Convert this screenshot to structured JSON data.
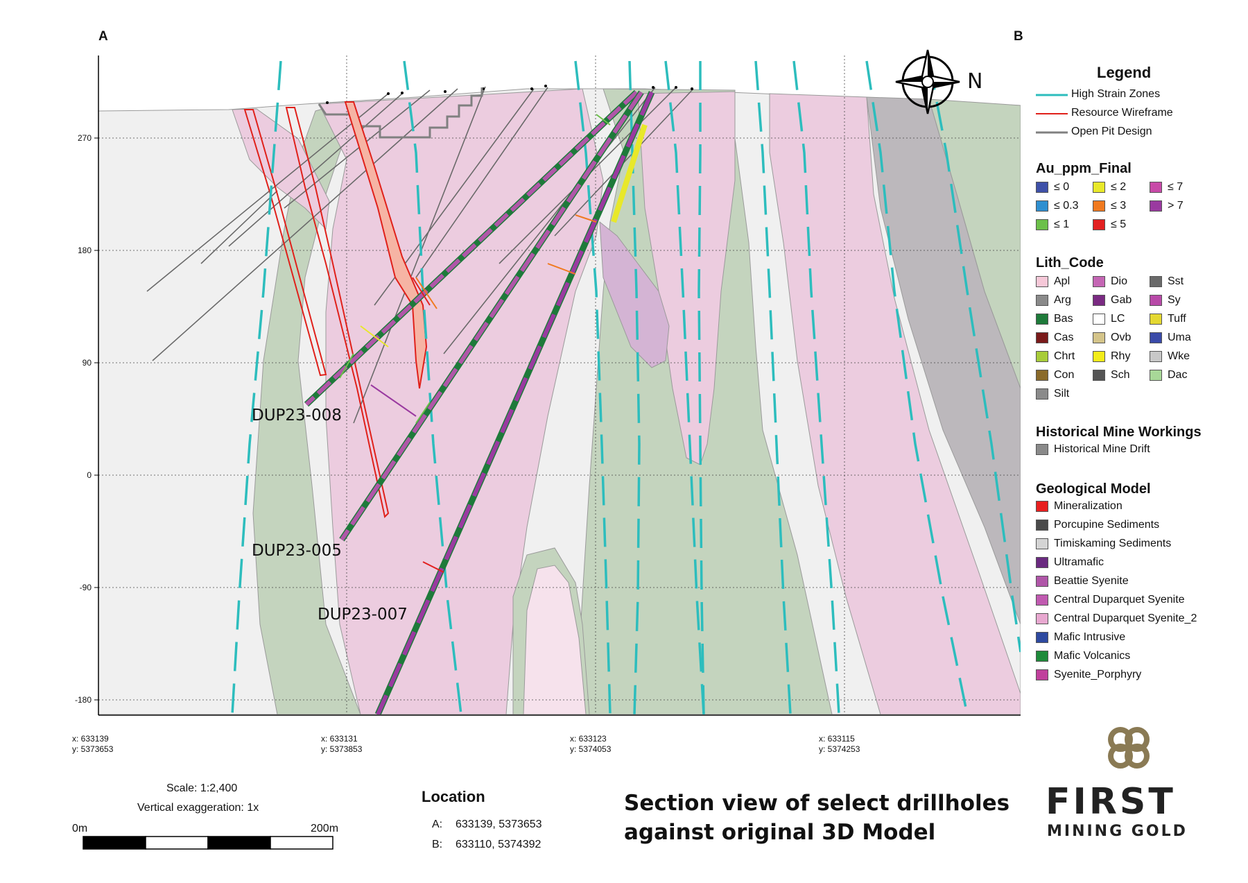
{
  "corner_labels": {
    "a": "A",
    "b": "B"
  },
  "y_axis": [
    "270",
    "180",
    "90",
    "0",
    "-90",
    "-180"
  ],
  "x_axis": [
    {
      "x": "x: 633139",
      "y": "y: 5373653"
    },
    {
      "x": "x: 633131",
      "y": "y: 5373853"
    },
    {
      "x": "x: 633123",
      "y": "y: 5374053"
    },
    {
      "x": "x: 633115",
      "y": "y: 5374253"
    }
  ],
  "holes": [
    "DUP23-008",
    "DUP23-005",
    "DUP23-007"
  ],
  "compass_label": "N",
  "legend": {
    "title": "Legend",
    "lines": [
      {
        "label": "High Strain Zones",
        "color": "#2dbdbd"
      },
      {
        "label": "Resource Wireframe",
        "color": "#e0201a"
      },
      {
        "label": "Open Pit Design",
        "color": "#808080"
      }
    ],
    "au_title": "Au_ppm_Final",
    "au": [
      {
        "label": "≤ 0",
        "color": "#3f51a8"
      },
      {
        "label": "≤ 2",
        "color": "#e8e82a"
      },
      {
        "label": "≤ 7",
        "color": "#c84aa8"
      },
      {
        "label": "≤ 0.3",
        "color": "#2f8fd0"
      },
      {
        "label": "≤ 3",
        "color": "#f07a20"
      },
      {
        "label": "> 7",
        "color": "#9a3aa0"
      },
      {
        "label": "≤ 1",
        "color": "#6cc04a"
      },
      {
        "label": "≤ 5",
        "color": "#e22020"
      }
    ],
    "lith_title": "Lith_Code",
    "lith": [
      {
        "label": "Apl",
        "color": "#f6c8d8"
      },
      {
        "label": "Dio",
        "color": "#c466b4"
      },
      {
        "label": "Sst",
        "color": "#6a6a6a"
      },
      {
        "label": "Arg",
        "color": "#8a8a8a"
      },
      {
        "label": "Gab",
        "color": "#7a2a82"
      },
      {
        "label": "Sy",
        "color": "#b84aa8"
      },
      {
        "label": "Bas",
        "color": "#1e7a3a"
      },
      {
        "label": "LC",
        "color": "#ffffff"
      },
      {
        "label": "Tuff",
        "color": "#e4d832"
      },
      {
        "label": "Cas",
        "color": "#7a1a1a"
      },
      {
        "label": "Ovb",
        "color": "#d4c48a"
      },
      {
        "label": "Uma",
        "color": "#3a4aa8"
      },
      {
        "label": "Chrt",
        "color": "#a8cc3a"
      },
      {
        "label": "Rhy",
        "color": "#f2ec1a"
      },
      {
        "label": "Wke",
        "color": "#c8c8c8"
      },
      {
        "label": "Con",
        "color": "#8a6a2a"
      },
      {
        "label": "Sch",
        "color": "#545454"
      },
      {
        "label": "Dac",
        "color": "#a8d898"
      },
      {
        "label": "Silt",
        "color": "#8a8a8a"
      }
    ],
    "hist_title": "Historical Mine Workings",
    "hist": [
      {
        "label": "Historical Mine Drift",
        "color": "#8a8a8a"
      }
    ],
    "geo_title": "Geological Model",
    "geo": [
      {
        "label": "Mineralization",
        "color": "#e82020"
      },
      {
        "label": "Porcupine Sediments",
        "color": "#4a4a4a"
      },
      {
        "label": "Timiskaming Sediments",
        "color": "#d4d4d4"
      },
      {
        "label": "Ultramafic",
        "color": "#6a2a80"
      },
      {
        "label": "Beattie Syenite",
        "color": "#b056a8"
      },
      {
        "label": "Central Duparquet Syenite",
        "color": "#c05ab0"
      },
      {
        "label": "Central Duparquet Syenite_2",
        "color": "#e8a8d0"
      },
      {
        "label": "Mafic Intrusive",
        "color": "#2e4aa0"
      },
      {
        "label": "Mafic Volcanics",
        "color": "#1e8a3a"
      },
      {
        "label": "Syenite_Porphyry",
        "color": "#c0409c"
      }
    ]
  },
  "scale": {
    "text": "Scale: 1:2,400",
    "exaggeration": "Vertical exaggeration: 1x",
    "start": "0m",
    "end": "200m"
  },
  "location": {
    "title": "Location",
    "a_label": "A:",
    "a_value": "633139, 5373653",
    "b_label": "B:",
    "b_value": "633110, 5374392"
  },
  "section_title": [
    "Section view of select drillholes",
    "against original 3D Model"
  ],
  "logo": {
    "line1": "FIRST",
    "line2": "MINING GOLD",
    "color": "#8a7a54"
  }
}
